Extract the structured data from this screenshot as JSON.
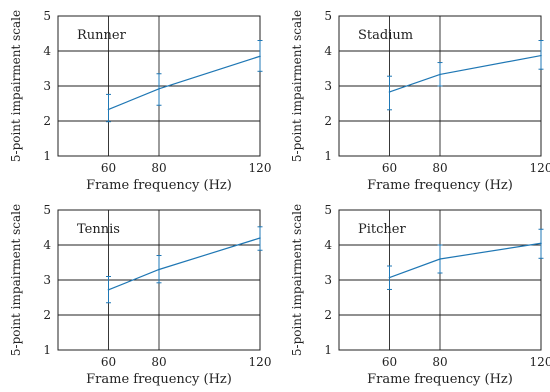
{
  "chart_data": [
    {
      "type": "line",
      "title": "Runner",
      "xlabel": "Frame frequency (Hz)",
      "ylabel": "5-point impairment scale",
      "x": [
        60,
        80,
        120
      ],
      "xticks": [
        60,
        80,
        120
      ],
      "yticks": [
        1,
        2,
        3,
        4,
        5
      ],
      "xlim": [
        40,
        120
      ],
      "ylim": [
        1,
        5
      ],
      "grid": true,
      "color": "#1f77b4",
      "values": [
        2.33,
        2.92,
        3.85
      ],
      "err_low": [
        1.98,
        2.45,
        3.42
      ],
      "err_high": [
        2.76,
        3.35,
        4.3
      ]
    },
    {
      "type": "line",
      "title": "Stadium",
      "xlabel": "Frame frequency (Hz)",
      "ylabel": "5-point impairment scale",
      "x": [
        60,
        80,
        120
      ],
      "xticks": [
        60,
        80,
        120
      ],
      "yticks": [
        1,
        2,
        3,
        4,
        5
      ],
      "xlim": [
        40,
        120
      ],
      "ylim": [
        1,
        5
      ],
      "grid": true,
      "color": "#1f77b4",
      "values": [
        2.83,
        3.33,
        3.87
      ],
      "err_low": [
        2.32,
        3.0,
        3.48
      ],
      "err_high": [
        3.28,
        3.67,
        4.3
      ]
    },
    {
      "type": "line",
      "title": "Tennis",
      "xlabel": "Frame frequency (Hz)",
      "ylabel": "5-point impairment scale",
      "x": [
        60,
        80,
        120
      ],
      "xticks": [
        60,
        80,
        120
      ],
      "yticks": [
        1,
        2,
        3,
        4,
        5
      ],
      "xlim": [
        40,
        120
      ],
      "ylim": [
        1,
        5
      ],
      "grid": true,
      "color": "#1f77b4",
      "values": [
        2.72,
        3.3,
        4.2
      ],
      "err_low": [
        2.35,
        2.92,
        3.85
      ],
      "err_high": [
        3.1,
        3.7,
        4.52
      ]
    },
    {
      "type": "line",
      "title": "Pitcher",
      "xlabel": "Frame frequency (Hz)",
      "ylabel": "5-point impairment scale",
      "x": [
        60,
        80,
        120
      ],
      "xticks": [
        60,
        80,
        120
      ],
      "yticks": [
        1,
        2,
        3,
        4,
        5
      ],
      "xlim": [
        40,
        120
      ],
      "ylim": [
        1,
        5
      ],
      "grid": true,
      "color": "#1f77b4",
      "values": [
        3.07,
        3.6,
        4.05
      ],
      "err_low": [
        2.73,
        3.2,
        3.62
      ],
      "err_high": [
        3.4,
        4.0,
        4.45
      ]
    }
  ]
}
